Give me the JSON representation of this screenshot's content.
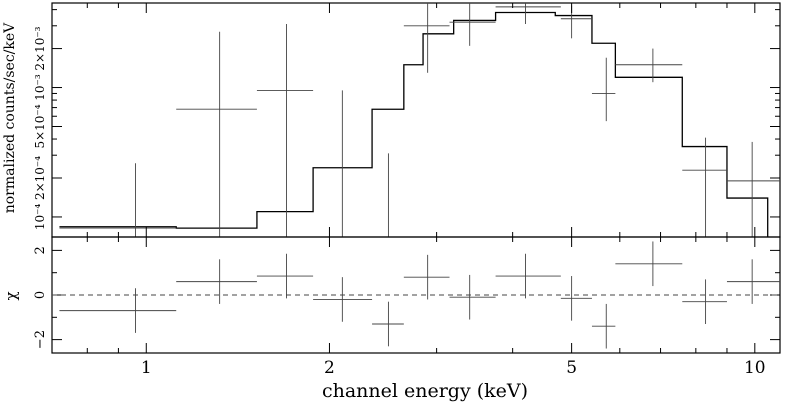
{
  "chart_data": [
    {
      "type": "step-with-errorbars",
      "panel": "spectrum",
      "ylabel": "normalized counts/sec/keV",
      "xscale": "log",
      "yscale": "log",
      "xlim": [
        0.7,
        11
      ],
      "ylim": [
        7e-05,
        0.0045
      ],
      "y_ticks": [
        {
          "value": 0.0001,
          "label": "10⁻⁴"
        },
        {
          "value": 0.0002,
          "label": "2×10⁻⁴"
        },
        {
          "value": 0.0005,
          "label": "5×10⁻⁴"
        },
        {
          "value": 0.001,
          "label": "10⁻³"
        },
        {
          "value": 0.002,
          "label": "2×10⁻³"
        }
      ],
      "data": [
        {
          "x": 0.96,
          "xlo": 0.72,
          "xhi": 1.12,
          "y": 8.2e-05,
          "ylo": 6e-05,
          "yhi": 0.00026
        },
        {
          "x": 1.32,
          "xlo": 1.12,
          "xhi": 1.52,
          "y": 0.00068,
          "ylo": 6e-05,
          "yhi": 0.0027
        },
        {
          "x": 1.7,
          "xlo": 1.52,
          "xhi": 1.88,
          "y": 0.00095,
          "ylo": 6e-05,
          "yhi": 0.0031
        },
        {
          "x": 2.1,
          "xlo": 1.88,
          "xhi": 2.35,
          "y": 0.0,
          "ylo": 6e-05,
          "yhi": 0.00095
        },
        {
          "x": 2.5,
          "xlo": 2.35,
          "xhi": 2.65,
          "y": 0.0,
          "ylo": 6e-05,
          "yhi": 0.00031
        },
        {
          "x": 2.9,
          "xlo": 2.65,
          "xhi": 3.15,
          "y": 0.003,
          "ylo": 0.0013,
          "yhi": 0.0045
        },
        {
          "x": 3.4,
          "xlo": 3.15,
          "xhi": 3.75,
          "y": 0.0032,
          "ylo": 0.0021,
          "yhi": 0.0045
        },
        {
          "x": 4.2,
          "xlo": 3.75,
          "xhi": 4.8,
          "y": 0.0042,
          "ylo": 0.0031,
          "yhi": 0.0045
        },
        {
          "x": 5.0,
          "xlo": 4.8,
          "xhi": 5.4,
          "y": 0.0034,
          "ylo": 0.0024,
          "yhi": 0.0043
        },
        {
          "x": 5.7,
          "xlo": 5.4,
          "xhi": 5.9,
          "y": 0.0009,
          "ylo": 0.00055,
          "yhi": 0.0017
        },
        {
          "x": 6.8,
          "xlo": 5.9,
          "xhi": 7.6,
          "y": 0.0015,
          "ylo": 0.0011,
          "yhi": 0.002
        },
        {
          "x": 8.3,
          "xlo": 7.6,
          "xhi": 9.0,
          "y": 0.00023,
          "ylo": 6e-05,
          "yhi": 0.00041
        },
        {
          "x": 9.9,
          "xlo": 9.0,
          "xhi": 11.0,
          "y": 0.00019,
          "ylo": 6e-05,
          "yhi": 0.00038
        }
      ],
      "model_steps": [
        {
          "x0": 0.72,
          "x1": 1.12,
          "y": 8.4e-05
        },
        {
          "x0": 1.12,
          "x1": 1.52,
          "y": 8.2e-05
        },
        {
          "x0": 1.52,
          "x1": 1.88,
          "y": 0.00011
        },
        {
          "x0": 1.88,
          "x1": 2.35,
          "y": 0.00024
        },
        {
          "x0": 2.35,
          "x1": 2.65,
          "y": 0.00068
        },
        {
          "x0": 2.65,
          "x1": 2.85,
          "y": 0.0015
        },
        {
          "x0": 2.85,
          "x1": 3.2,
          "y": 0.0026
        },
        {
          "x0": 3.2,
          "x1": 3.75,
          "y": 0.0033
        },
        {
          "x0": 3.75,
          "x1": 4.7,
          "y": 0.0038
        },
        {
          "x0": 4.7,
          "x1": 5.4,
          "y": 0.0036
        },
        {
          "x0": 5.4,
          "x1": 5.9,
          "y": 0.0022
        },
        {
          "x0": 5.9,
          "x1": 7.6,
          "y": 0.0012
        },
        {
          "x0": 7.6,
          "x1": 9.0,
          "y": 0.00035
        },
        {
          "x0": 9.0,
          "x1": 10.5,
          "y": 0.00014
        }
      ]
    },
    {
      "type": "residuals",
      "panel": "residuals",
      "ylabel": "χ",
      "xlabel": "channel energy (keV)",
      "xscale": "log",
      "xlim": [
        0.7,
        11
      ],
      "ylim": [
        -2.6,
        2.6
      ],
      "x_ticks": [
        {
          "value": 1,
          "label": "1"
        },
        {
          "value": 2,
          "label": "2"
        },
        {
          "value": 5,
          "label": "5"
        },
        {
          "value": 10,
          "label": "10"
        }
      ],
      "y_ticks": [
        {
          "value": -2,
          "label": "−2"
        },
        {
          "value": 0,
          "label": "0"
        },
        {
          "value": 2,
          "label": "2"
        }
      ],
      "data": [
        {
          "x": 0.96,
          "xlo": 0.72,
          "xhi": 1.12,
          "y": -0.7,
          "ylo": -1.7,
          "yhi": 0.3
        },
        {
          "x": 1.32,
          "xlo": 1.12,
          "xhi": 1.52,
          "y": 0.6,
          "ylo": -0.4,
          "yhi": 1.6
        },
        {
          "x": 1.7,
          "xlo": 1.52,
          "xhi": 1.88,
          "y": 0.85,
          "ylo": -0.15,
          "yhi": 1.85
        },
        {
          "x": 2.1,
          "xlo": 1.88,
          "xhi": 2.35,
          "y": -0.2,
          "ylo": -1.2,
          "yhi": 0.8
        },
        {
          "x": 2.5,
          "xlo": 2.35,
          "xhi": 2.65,
          "y": -1.3,
          "ylo": -2.3,
          "yhi": -0.3
        },
        {
          "x": 2.9,
          "xlo": 2.65,
          "xhi": 3.15,
          "y": 0.8,
          "ylo": -0.2,
          "yhi": 1.8
        },
        {
          "x": 3.4,
          "xlo": 3.15,
          "xhi": 3.75,
          "y": -0.1,
          "ylo": -1.1,
          "yhi": 0.9
        },
        {
          "x": 4.2,
          "xlo": 3.75,
          "xhi": 4.8,
          "y": 0.85,
          "ylo": -0.15,
          "yhi": 1.85
        },
        {
          "x": 5.0,
          "xlo": 4.8,
          "xhi": 5.4,
          "y": -0.15,
          "ylo": -1.15,
          "yhi": 0.85
        },
        {
          "x": 5.7,
          "xlo": 5.4,
          "xhi": 5.9,
          "y": -1.4,
          "ylo": -2.4,
          "yhi": -0.4
        },
        {
          "x": 6.8,
          "xlo": 5.9,
          "xhi": 7.6,
          "y": 1.4,
          "ylo": 0.4,
          "yhi": 2.4
        },
        {
          "x": 8.3,
          "xlo": 7.6,
          "xhi": 9.0,
          "y": -0.3,
          "ylo": -1.3,
          "yhi": 0.7
        },
        {
          "x": 9.9,
          "xlo": 9.0,
          "xhi": 11.0,
          "y": 0.6,
          "ylo": -0.4,
          "yhi": 1.6
        }
      ]
    }
  ]
}
